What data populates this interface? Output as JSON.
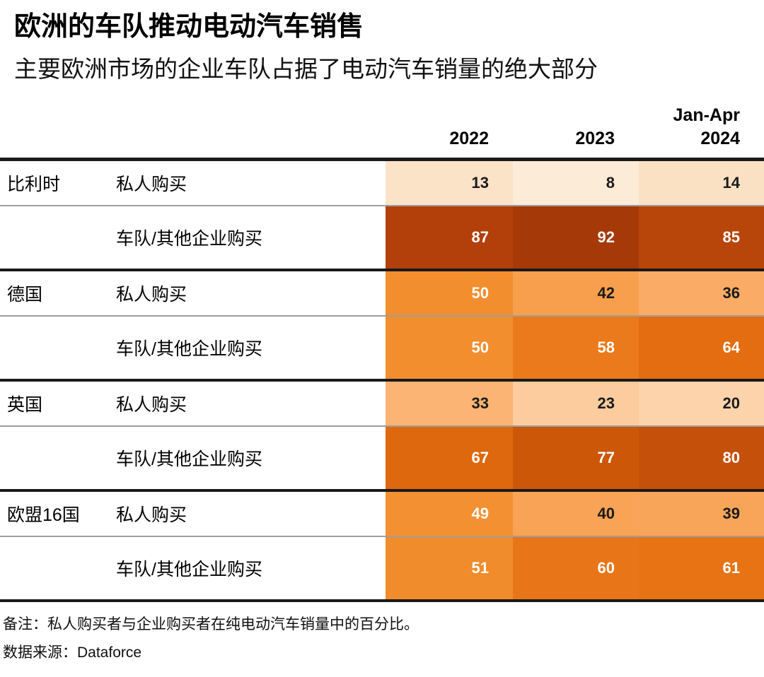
{
  "header": {
    "title": "欧洲的车队推动电动汽车销售",
    "subtitle": "主要欧洲市场的企业车队占据了电动汽车销量的绝大部分"
  },
  "columns": [
    {
      "sublabel": "",
      "label": "2022"
    },
    {
      "sublabel": "",
      "label": "2023"
    },
    {
      "sublabel": "Jan-Apr",
      "label": "2024"
    }
  ],
  "footer": {
    "note": "备注：私人购买者与企业购买者在纯电动汽车销量中的百分比。",
    "source": "数据来源：Dataforce"
  },
  "chart_data": {
    "type": "heatmap",
    "title": "欧洲的车队推动电动汽车销售",
    "subtitle": "主要欧洲市场的企业车队占据了电动汽车销量的绝大部分",
    "unit": "percent_of_BEV_sales",
    "columns": [
      "2022",
      "2023",
      "Jan-Apr 2024"
    ],
    "rows": [
      {
        "country": "比利时",
        "category": "私人购买",
        "values": [
          13,
          8,
          14
        ]
      },
      {
        "country": "",
        "category": "车队/其他企业购买",
        "values": [
          87,
          92,
          85
        ]
      },
      {
        "country": "德国",
        "category": "私人购买",
        "values": [
          50,
          42,
          36
        ]
      },
      {
        "country": "",
        "category": "车队/其他企业购买",
        "values": [
          50,
          58,
          64
        ]
      },
      {
        "country": "英国",
        "category": "私人购买",
        "values": [
          33,
          23,
          20
        ]
      },
      {
        "country": "",
        "category": "车队/其他企业购买",
        "values": [
          67,
          77,
          80
        ]
      },
      {
        "country": "欧盟16国",
        "category": "私人购买",
        "values": [
          49,
          40,
          39
        ]
      },
      {
        "country": "",
        "category": "车队/其他企业购买",
        "values": [
          51,
          60,
          61
        ]
      }
    ],
    "color_scale": {
      "domain": [
        0,
        100
      ],
      "stops": [
        "#fff7ec",
        "#fbe4ca",
        "#fcc897",
        "#faa85f",
        "#f28e2e",
        "#e66f11",
        "#d15b09",
        "#b23f0a",
        "#8f2d05"
      ],
      "text_dark": "#1a1a1a",
      "text_light": "#ffffff",
      "light_text_threshold": 45
    },
    "note": "备注：私人购买者与企业购买者在纯电动汽车销量中的百分比。",
    "source": "Dataforce",
    "legend_position": "none",
    "grid": "off"
  }
}
